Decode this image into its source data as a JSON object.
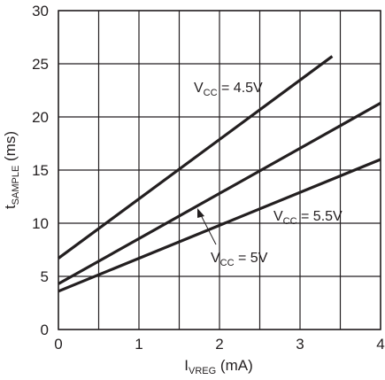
{
  "chart_data": {
    "type": "line",
    "xlabel_main": "I",
    "xlabel_sub": "VREG",
    "xlabel_unit": " (mA)",
    "ylabel_main": "t",
    "ylabel_sub": "SAMPLE",
    "ylabel_unit": " (ms)",
    "xlim": [
      0,
      4
    ],
    "ylim": [
      0,
      30
    ],
    "x_ticks": [
      0,
      1,
      2,
      3,
      4
    ],
    "y_ticks": [
      0,
      5,
      10,
      15,
      20,
      25,
      30
    ],
    "grid_x": [
      0,
      0.5,
      1,
      1.5,
      2,
      2.5,
      3,
      3.5,
      4
    ],
    "grid_y": [
      0,
      5,
      10,
      15,
      20,
      25,
      30
    ],
    "grid": true,
    "line_color": "#231f20",
    "grid_color": "#231f20",
    "series": [
      {
        "x": [
          0,
          3.4
        ],
        "y": [
          6.7,
          25.7
        ]
      },
      {
        "x": [
          0,
          4
        ],
        "y": [
          4.3,
          21.3
        ]
      },
      {
        "x": [
          0,
          4
        ],
        "y": [
          3.6,
          16.0
        ]
      }
    ],
    "annotations": [
      {
        "main": "V",
        "sub": "CC",
        "rest": " = 4.5V"
      },
      {
        "main": "V",
        "sub": "CC",
        "rest": " = 5.5V"
      },
      {
        "main": "V",
        "sub": "CC",
        "rest": " = 5V"
      }
    ]
  }
}
